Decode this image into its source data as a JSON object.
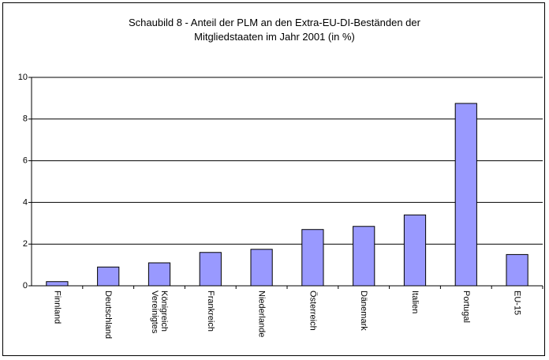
{
  "chart_data": {
    "type": "bar",
    "title": "Schaubild 8 - Anteil der PLM an den Extra-EU-DI-Beständen der Mitgliedstaaten im Jahr 2001 (in %)",
    "categories": [
      "Finnland",
      "Deutschland",
      "Vereinigtes Königreich",
      "Frankreich",
      "Niederlande",
      "Österreich",
      "Dänemark",
      "Italien",
      "Portugal",
      "EU-15"
    ],
    "values": [
      0.2,
      0.9,
      1.1,
      1.6,
      1.75,
      2.7,
      2.85,
      3.4,
      8.75,
      1.5
    ],
    "color": "#9999ff",
    "ylim": [
      0,
      10
    ],
    "yticks": [
      0,
      2,
      4,
      6,
      8,
      10
    ],
    "grid": true
  }
}
